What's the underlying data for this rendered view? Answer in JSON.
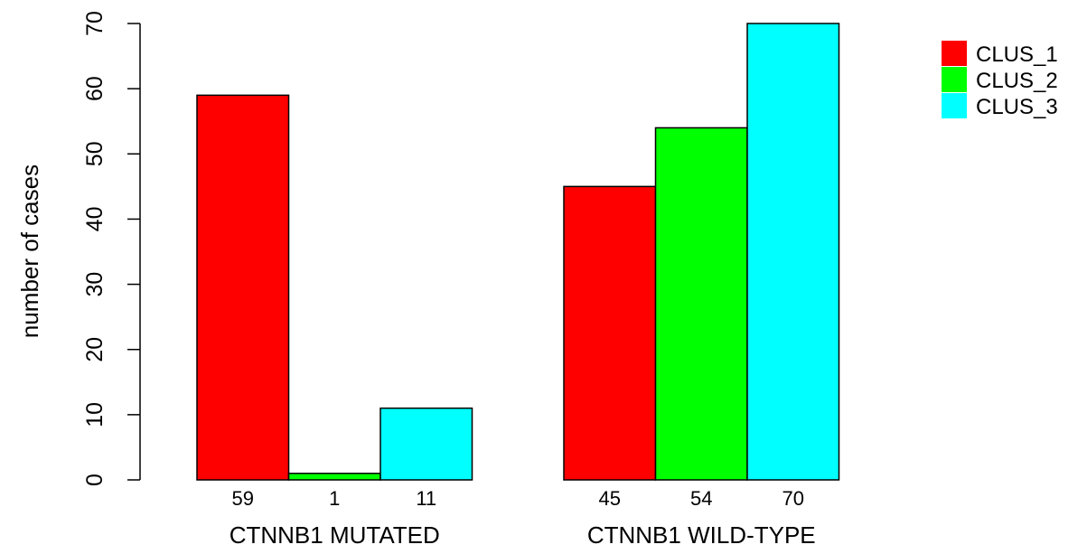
{
  "chart_data": {
    "type": "bar",
    "ylabel": "number of cases",
    "ylim": [
      0,
      70
    ],
    "yticks": [
      0,
      10,
      20,
      30,
      40,
      50,
      60,
      70
    ],
    "grid": false,
    "legend_position": "top-right",
    "groups": [
      "CTNNB1 MUTATED",
      "CTNNB1 WILD-TYPE"
    ],
    "series": [
      {
        "name": "CLUS_1",
        "color": "#ff0000",
        "values": [
          59,
          45
        ]
      },
      {
        "name": "CLUS_2",
        "color": "#00ff00",
        "values": [
          1,
          54
        ]
      },
      {
        "name": "CLUS_3",
        "color": "#00ffff",
        "values": [
          11,
          70
        ]
      }
    ]
  }
}
